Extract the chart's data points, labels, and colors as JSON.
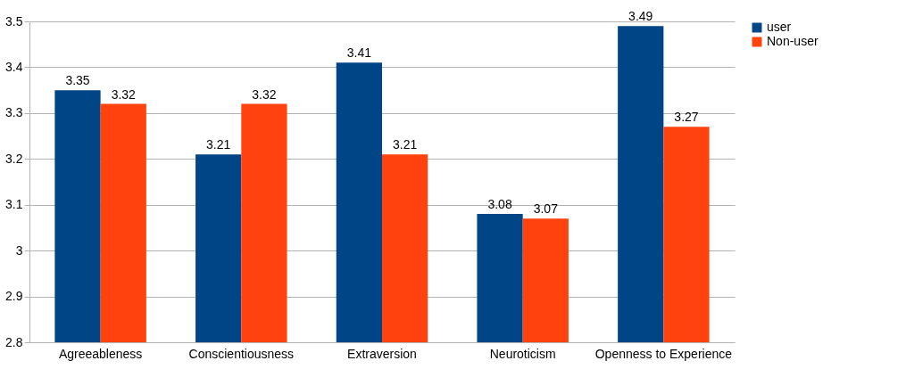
{
  "chart_data": {
    "type": "bar",
    "categories": [
      "Agreeableness",
      "Conscientiousness",
      "Extraversion",
      "Neuroticism",
      "Openness to Experience"
    ],
    "series": [
      {
        "name": "user",
        "color": "#004586",
        "values": [
          3.35,
          3.21,
          3.41,
          3.08,
          3.49
        ]
      },
      {
        "name": "Non-user",
        "color": "#ff420e",
        "values": [
          3.32,
          3.32,
          3.21,
          3.07,
          3.27
        ]
      }
    ],
    "ylim": [
      2.8,
      3.5
    ],
    "yticks": [
      2.8,
      2.9,
      3,
      3.1,
      3.2,
      3.3,
      3.4,
      3.5
    ],
    "grid": "y",
    "legend": "right",
    "data_labels": true
  }
}
